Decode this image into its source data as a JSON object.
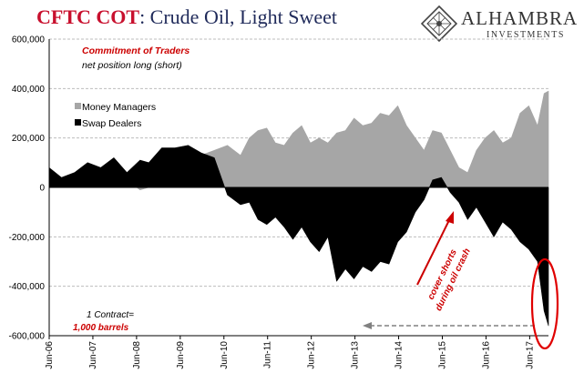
{
  "title": {
    "prefix": "CFTC COT",
    "suffix": ": Crude Oil, Light Sweet"
  },
  "logo": {
    "name": "ALHAMBRA",
    "sub": "INVESTMENTS"
  },
  "annotations": {
    "header_red": "Commitment of Traders",
    "header_black": "net position long (short)",
    "contract_line1": "1 Contract=",
    "contract_line2": "1,000 barrels",
    "arrow_line1": "cover shorts",
    "arrow_line2": "during oil crash"
  },
  "colors": {
    "money_managers": "#a6a6a6",
    "swap_dealers": "#000000",
    "accent": "#cc0000",
    "title_blue": "#1f2a5a"
  },
  "chart_data": {
    "type": "area",
    "title": "CFTC COT: Crude Oil, Light Sweet",
    "ylim": [
      -600000,
      600000
    ],
    "yticks": [
      -600000,
      -400000,
      -200000,
      0,
      200000,
      400000,
      600000
    ],
    "ytick_labels": [
      "-600,000",
      "-400,000",
      "-200,000",
      "0",
      "200,000",
      "400,000",
      "600,000"
    ],
    "xticks": [
      2006.42,
      2007.42,
      2008.42,
      2009.42,
      2010.42,
      2011.42,
      2012.42,
      2013.42,
      2014.42,
      2015.42,
      2016.42,
      2017.42
    ],
    "xtick_labels": [
      "Jun-06",
      "Jun-07",
      "Jun-08",
      "Jun-09",
      "Jun-10",
      "Jun-11",
      "Jun-12",
      "Jun-13",
      "Jun-14",
      "Jun-15",
      "Jun-16",
      "Jun-17"
    ],
    "xlim": [
      2006.42,
      2017.85
    ],
    "series": [
      {
        "name": "Money Managers",
        "color": "#a6a6a6",
        "x": [
          2006.42,
          2006.7,
          2007.0,
          2007.3,
          2007.6,
          2007.9,
          2008.2,
          2008.5,
          2008.7,
          2009.0,
          2009.3,
          2009.6,
          2009.9,
          2010.2,
          2010.5,
          2010.8,
          2011.0,
          2011.2,
          2011.4,
          2011.6,
          2011.8,
          2012.0,
          2012.2,
          2012.4,
          2012.6,
          2012.8,
          2013.0,
          2013.2,
          2013.4,
          2013.6,
          2013.8,
          2014.0,
          2014.2,
          2014.4,
          2014.6,
          2014.8,
          2015.0,
          2015.2,
          2015.4,
          2015.6,
          2015.8,
          2016.0,
          2016.2,
          2016.4,
          2016.6,
          2016.8,
          2017.0,
          2017.2,
          2017.4,
          2017.6,
          2017.75,
          2017.85
        ],
        "values": [
          20000,
          30000,
          50000,
          60000,
          55000,
          75000,
          30000,
          -10000,
          0,
          40000,
          90000,
          110000,
          130000,
          150000,
          170000,
          130000,
          200000,
          230000,
          240000,
          180000,
          170000,
          220000,
          250000,
          180000,
          200000,
          180000,
          220000,
          230000,
          280000,
          250000,
          260000,
          300000,
          290000,
          330000,
          250000,
          200000,
          150000,
          230000,
          220000,
          150000,
          80000,
          60000,
          150000,
          200000,
          230000,
          180000,
          200000,
          300000,
          330000,
          250000,
          380000,
          390000
        ]
      },
      {
        "name": "Swap Dealers",
        "color": "#000000",
        "x": [
          2006.42,
          2006.7,
          2007.0,
          2007.3,
          2007.6,
          2007.9,
          2008.2,
          2008.5,
          2008.7,
          2009.0,
          2009.3,
          2009.6,
          2009.9,
          2010.2,
          2010.5,
          2010.8,
          2011.0,
          2011.2,
          2011.4,
          2011.6,
          2011.8,
          2012.0,
          2012.2,
          2012.4,
          2012.6,
          2012.8,
          2013.0,
          2013.2,
          2013.4,
          2013.6,
          2013.8,
          2014.0,
          2014.2,
          2014.4,
          2014.6,
          2014.8,
          2015.0,
          2015.2,
          2015.4,
          2015.6,
          2015.8,
          2016.0,
          2016.2,
          2016.4,
          2016.6,
          2016.8,
          2017.0,
          2017.2,
          2017.4,
          2017.6,
          2017.75,
          2017.85
        ],
        "values": [
          80000,
          40000,
          60000,
          100000,
          80000,
          120000,
          60000,
          110000,
          100000,
          160000,
          160000,
          170000,
          140000,
          120000,
          -30000,
          -70000,
          -60000,
          -130000,
          -150000,
          -120000,
          -160000,
          -210000,
          -160000,
          -220000,
          -260000,
          -200000,
          -380000,
          -330000,
          -370000,
          -320000,
          -340000,
          -300000,
          -310000,
          -220000,
          -180000,
          -100000,
          -50000,
          30000,
          40000,
          -20000,
          -60000,
          -130000,
          -80000,
          -140000,
          -200000,
          -140000,
          -170000,
          -220000,
          -250000,
          -300000,
          -500000,
          -560000
        ]
      }
    ],
    "legend": {
      "placement": "top-left",
      "items": [
        "Money Managers",
        "Swap Dealers"
      ]
    }
  }
}
